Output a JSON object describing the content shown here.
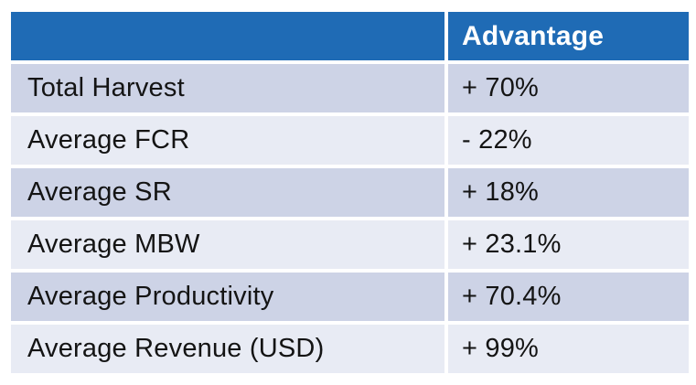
{
  "chart_data": {
    "type": "table",
    "title": "",
    "columns": [
      {
        "label": ""
      },
      {
        "label": "Advantage"
      }
    ],
    "rows": [
      {
        "metric": "Total Harvest",
        "advantage": "+ 70%"
      },
      {
        "metric": "Average FCR",
        "advantage": "- 22%"
      },
      {
        "metric": "Average SR",
        "advantage": "+ 18%"
      },
      {
        "metric": "Average MBW",
        "advantage": "+ 23.1%"
      },
      {
        "metric": "Average Productivity",
        "advantage": "+ 70.4%"
      },
      {
        "metric": "Average Revenue (USD)",
        "advantage": "+ 99%"
      }
    ],
    "layout": {
      "legend": "none",
      "grid": "banded-rows",
      "header_position": "top"
    },
    "colors": {
      "header_bg": "#1F6BB5",
      "header_text": "#FFFFFF",
      "row_odd_bg": "#CDD3E6",
      "row_even_bg": "#E8EBF4",
      "body_text": "#141414",
      "divider": "#FFFFFF"
    }
  }
}
